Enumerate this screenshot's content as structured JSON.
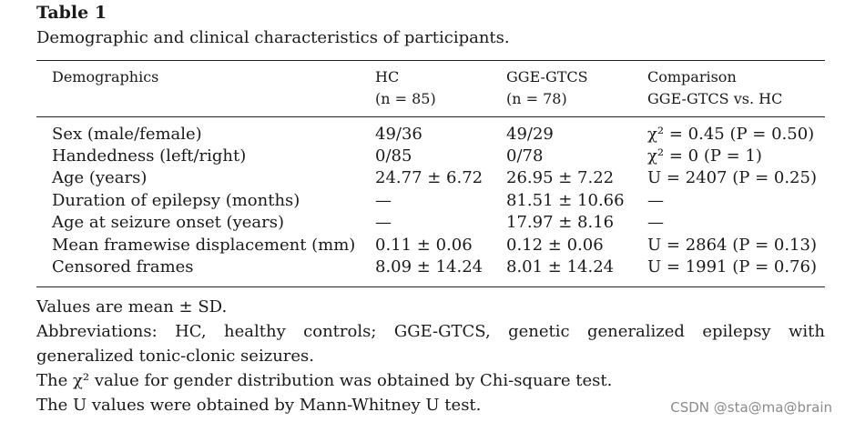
{
  "table_label": "Table 1",
  "caption": "Demographic and clinical characteristics of participants.",
  "header": {
    "col0": "Demographics",
    "col1_line1": "HC",
    "col1_line2": "(n = 85)",
    "col2_line1": "GGE-GTCS",
    "col2_line2": "(n = 78)",
    "col3_line1": "Comparison",
    "col3_line2": "GGE-GTCS vs. HC"
  },
  "rows": [
    {
      "label": "Sex (male/female)",
      "hc": "49/36",
      "gge": "49/29",
      "comparison": "χ² = 0.45 (P = 0.50)"
    },
    {
      "label": "Handedness (left/right)",
      "hc": "0/85",
      "gge": "0/78",
      "comparison": "χ² = 0 (P = 1)"
    },
    {
      "label": "Age (years)",
      "hc": "24.77 ± 6.72",
      "gge": "26.95 ± 7.22",
      "comparison": "U = 2407 (P = 0.25)"
    },
    {
      "label": "Duration of epilepsy (months)",
      "hc": "—",
      "gge": "81.51 ± 10.66",
      "comparison": "—"
    },
    {
      "label": "Age at seizure onset (years)",
      "hc": "—",
      "gge": "17.97 ± 8.16",
      "comparison": "—"
    },
    {
      "label": "Mean framewise displacement (mm)",
      "hc": "0.11 ± 0.06",
      "gge": "0.12 ± 0.06",
      "comparison": "U = 2864 (P = 0.13)"
    },
    {
      "label": "Censored frames",
      "hc": "8.09 ± 14.24",
      "gge": "8.01 ± 14.24",
      "comparison": "U = 1991 (P = 0.76)"
    }
  ],
  "notes": {
    "values": "Values are mean ± SD.",
    "abbreviations": "Abbreviations: HC, healthy controls; GGE-GTCS, genetic generalized epilepsy with generalized tonic-clonic seizures.",
    "chi_square": "The χ² value for gender distribution was obtained by Chi-square test.",
    "u_values": "The U values were obtained by Mann-Whitney U test."
  },
  "watermark": "CSDN @sta@ma@brain"
}
